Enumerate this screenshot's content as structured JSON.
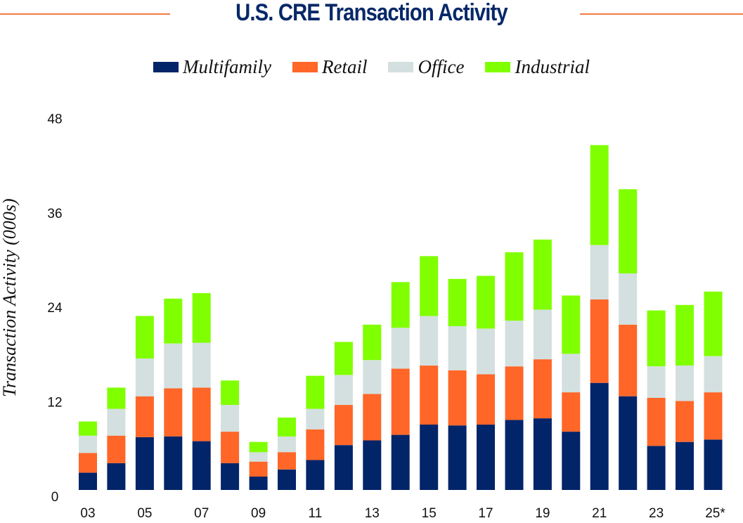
{
  "chart_data": {
    "type": "bar",
    "stacked": true,
    "title": "U.S. CRE Transaction Activity",
    "xlabel": "",
    "ylabel": "Transaction Activity (000s)",
    "ylim": [
      0,
      48
    ],
    "yticks": [
      "0",
      "12",
      "24",
      "36",
      "48"
    ],
    "ytick_values": [
      0,
      12,
      24,
      36,
      48
    ],
    "grid": false,
    "legend_position": "top-center",
    "categories": [
      "03",
      "04",
      "05",
      "06",
      "07",
      "08",
      "09",
      "10",
      "11",
      "12",
      "13",
      "14",
      "15",
      "16",
      "17",
      "18",
      "19",
      "20",
      "21",
      "22",
      "23",
      "24",
      "25*"
    ],
    "xtick_labels": [
      "03",
      "",
      "05",
      "",
      "07",
      "",
      "09",
      "",
      "11",
      "",
      "13",
      "",
      "15",
      "",
      "17",
      "",
      "19",
      "",
      "21",
      "",
      "23",
      "",
      "25*"
    ],
    "series": [
      {
        "name": "Multifamily",
        "color": "#022469",
        "values": [
          2.2,
          3.4,
          6.7,
          6.8,
          6.2,
          3.4,
          1.7,
          2.6,
          3.8,
          5.7,
          6.3,
          7.0,
          8.3,
          8.2,
          8.3,
          8.9,
          9.1,
          7.4,
          13.6,
          11.9,
          5.6,
          6.1,
          6.4
        ]
      },
      {
        "name": "Retail",
        "color": "#FF6628",
        "values": [
          2.5,
          3.5,
          5.2,
          6.1,
          6.8,
          4.0,
          1.9,
          2.2,
          3.9,
          5.1,
          5.9,
          8.4,
          7.5,
          7.0,
          6.4,
          6.8,
          7.5,
          5.0,
          10.6,
          9.1,
          6.1,
          5.2,
          6.0
        ]
      },
      {
        "name": "Office",
        "color": "#D3E0DF",
        "values": [
          2.2,
          3.4,
          4.8,
          5.7,
          5.7,
          3.4,
          1.2,
          2.0,
          2.6,
          3.8,
          4.3,
          5.2,
          6.3,
          5.6,
          5.8,
          5.8,
          6.3,
          4.9,
          6.9,
          6.5,
          4.0,
          4.5,
          4.6
        ]
      },
      {
        "name": "Industrial",
        "color": "#80FF00",
        "values": [
          1.8,
          2.7,
          5.4,
          5.7,
          6.3,
          3.1,
          1.3,
          2.4,
          4.2,
          4.2,
          4.5,
          5.8,
          7.6,
          6.0,
          6.7,
          8.7,
          8.9,
          7.4,
          12.7,
          10.7,
          7.1,
          7.7,
          8.2
        ]
      }
    ]
  },
  "colors": {
    "title": "#062868",
    "rule": "#F47A45"
  }
}
